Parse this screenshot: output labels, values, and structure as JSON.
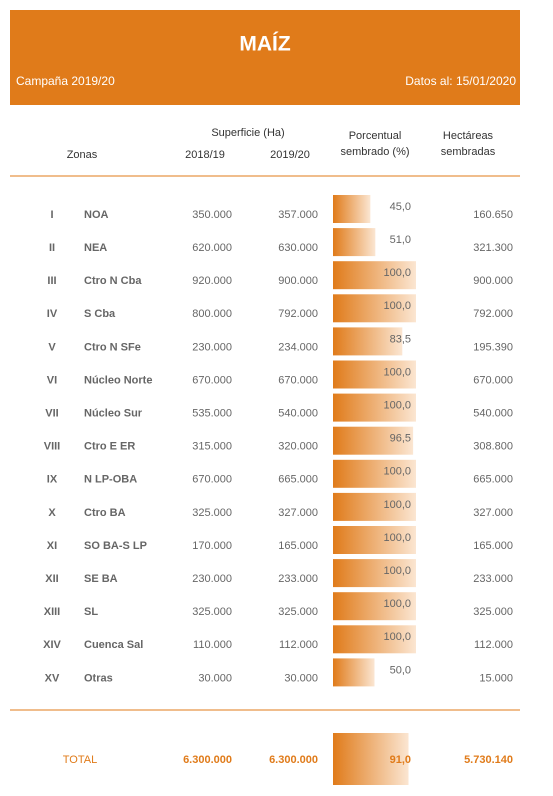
{
  "header": {
    "title": "MAÍZ",
    "campaign": "Campaña 2019/20",
    "date": "Datos al: 15/01/2020"
  },
  "columns": {
    "zones": "Zonas",
    "surface": "Superficie (Ha)",
    "year1": "2018/19",
    "year2": "2019/20",
    "pct_line1": "Porcentual",
    "pct_line2": "sembrado (%)",
    "ha_line1": "Hectáreas",
    "ha_line2": "sembradas"
  },
  "rows": [
    {
      "num": "I",
      "zone": "NOA",
      "s1": "350.000",
      "s2": "357.000",
      "pct": 45.0,
      "pct_label": "45,0",
      "ha": "160.650"
    },
    {
      "num": "II",
      "zone": "NEA",
      "s1": "620.000",
      "s2": "630.000",
      "pct": 51.0,
      "pct_label": "51,0",
      "ha": "321.300"
    },
    {
      "num": "III",
      "zone": "Ctro N Cba",
      "s1": "920.000",
      "s2": "900.000",
      "pct": 100.0,
      "pct_label": "100,0",
      "ha": "900.000"
    },
    {
      "num": "IV",
      "zone": "S Cba",
      "s1": "800.000",
      "s2": "792.000",
      "pct": 100.0,
      "pct_label": "100,0",
      "ha": "792.000"
    },
    {
      "num": "V",
      "zone": "Ctro N SFe",
      "s1": "230.000",
      "s2": "234.000",
      "pct": 83.5,
      "pct_label": "83,5",
      "ha": "195.390"
    },
    {
      "num": "VI",
      "zone": "Núcleo Norte",
      "s1": "670.000",
      "s2": "670.000",
      "pct": 100.0,
      "pct_label": "100,0",
      "ha": "670.000"
    },
    {
      "num": "VII",
      "zone": "Núcleo Sur",
      "s1": "535.000",
      "s2": "540.000",
      "pct": 100.0,
      "pct_label": "100,0",
      "ha": "540.000"
    },
    {
      "num": "VIII",
      "zone": "Ctro E ER",
      "s1": "315.000",
      "s2": "320.000",
      "pct": 96.5,
      "pct_label": "96,5",
      "ha": "308.800"
    },
    {
      "num": "IX",
      "zone": "N LP-OBA",
      "s1": "670.000",
      "s2": "665.000",
      "pct": 100.0,
      "pct_label": "100,0",
      "ha": "665.000"
    },
    {
      "num": "X",
      "zone": "Ctro BA",
      "s1": "325.000",
      "s2": "327.000",
      "pct": 100.0,
      "pct_label": "100,0",
      "ha": "327.000"
    },
    {
      "num": "XI",
      "zone": "SO BA-S LP",
      "s1": "170.000",
      "s2": "165.000",
      "pct": 100.0,
      "pct_label": "100,0",
      "ha": "165.000"
    },
    {
      "num": "XII",
      "zone": "SE BA",
      "s1": "230.000",
      "s2": "233.000",
      "pct": 100.0,
      "pct_label": "100,0",
      "ha": "233.000"
    },
    {
      "num": "XIII",
      "zone": "SL",
      "s1": "325.000",
      "s2": "325.000",
      "pct": 100.0,
      "pct_label": "100,0",
      "ha": "325.000"
    },
    {
      "num": "XIV",
      "zone": "Cuenca Sal",
      "s1": "110.000",
      "s2": "112.000",
      "pct": 100.0,
      "pct_label": "100,0",
      "ha": "112.000"
    },
    {
      "num": "XV",
      "zone": "Otras",
      "s1": "30.000",
      "s2": "30.000",
      "pct": 50.0,
      "pct_label": "50,0",
      "ha": "15.000"
    }
  ],
  "total": {
    "label": "TOTAL",
    "s1": "6.300.000",
    "s2": "6.300.000",
    "pct": 91.0,
    "pct_label": "91,0",
    "ha": "5.730.140"
  }
}
